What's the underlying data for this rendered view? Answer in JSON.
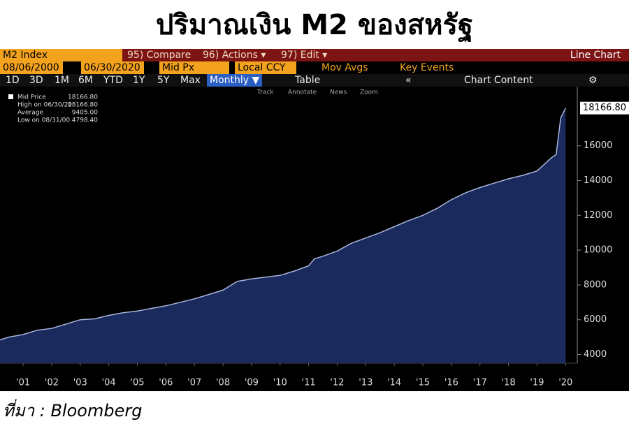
{
  "title": "ปริมาณเงิน M2 ของสหรัฐ",
  "source": "ที่มา : Bloomberg",
  "toolbar": {
    "ticker": "M2 Index",
    "compare": "95) Compare",
    "actions": "96) Actions ▾",
    "edit": "97) Edit ▾",
    "chart_kind": "Line Chart",
    "start_date": "08/06/2000",
    "end_date": "06/30/2020",
    "field": "Mid Px",
    "currency": "Local CCY",
    "mov_avgs": "Mov Avgs",
    "key_events": "Key Events",
    "ranges": [
      "1D",
      "3D",
      "1M",
      "6M",
      "YTD",
      "1Y",
      "5Y",
      "Max"
    ],
    "period": "Monthly ▼",
    "table": "Table",
    "collapse": "«",
    "chart_content": "Chart Content",
    "settings": "⚙",
    "tools": [
      "Track",
      "Annotate",
      "News",
      "Zoom"
    ]
  },
  "chart_data": {
    "type": "area",
    "x": [
      2000.6,
      2001.0,
      2001.5,
      2002.0,
      2002.5,
      2003.0,
      2003.5,
      2004.0,
      2004.5,
      2005.0,
      2005.5,
      2006.0,
      2006.5,
      2007.0,
      2007.5,
      2008.0,
      2008.5,
      2009.0,
      2009.5,
      2010.0,
      2010.5,
      2011.0,
      2011.5,
      2011.7,
      2012.0,
      2012.5,
      2013.0,
      2013.5,
      2014.0,
      2014.5,
      2015.0,
      2015.5,
      2016.0,
      2016.5,
      2017.0,
      2017.5,
      2018.0,
      2018.5,
      2019.0,
      2019.5,
      2020.0,
      2020.17,
      2020.33,
      2020.5
    ],
    "series": [
      {
        "name": "Mid Price",
        "color": "#1a2a5c",
        "line_color": "#a9b6dc",
        "values": [
          4798.4,
          5000,
          5150,
          5400,
          5500,
          5750,
          6000,
          6050,
          6250,
          6400,
          6500,
          6650,
          6800,
          7000,
          7200,
          7450,
          7700,
          8200,
          8350,
          8450,
          8550,
          8800,
          9100,
          9500,
          9650,
          9950,
          10400,
          10700,
          11000,
          11350,
          11700,
          12000,
          12400,
          12900,
          13300,
          13600,
          13850,
          14100,
          14300,
          14550,
          15300,
          15500,
          17600,
          18166.8
        ]
      }
    ],
    "last_value_label": "18166.80",
    "stats": [
      {
        "name": "Mid Price",
        "value_label": "18166.80"
      },
      {
        "name": "High on 06/30/20",
        "value_label": "18166.80"
      },
      {
        "name": "Average",
        "value_label": "9405.00"
      },
      {
        "name": "Low on 08/31/00",
        "value_label": "4798.40"
      }
    ],
    "xlim": [
      2000.69,
      2020.91
    ],
    "xticks": [
      {
        "value": 2001.5,
        "label": "'01"
      },
      {
        "value": 2002.5,
        "label": "'02"
      },
      {
        "value": 2003.5,
        "label": "'03"
      },
      {
        "value": 2004.5,
        "label": "'04"
      },
      {
        "value": 2005.5,
        "label": "'05"
      },
      {
        "value": 2006.5,
        "label": "'06"
      },
      {
        "value": 2007.5,
        "label": "'07"
      },
      {
        "value": 2008.5,
        "label": "'08"
      },
      {
        "value": 2009.5,
        "label": "'09"
      },
      {
        "value": 2010.5,
        "label": "'10"
      },
      {
        "value": 2011.5,
        "label": "'11"
      },
      {
        "value": 2012.5,
        "label": "'12"
      },
      {
        "value": 2013.5,
        "label": "'13"
      },
      {
        "value": 2014.5,
        "label": "'14"
      },
      {
        "value": 2015.5,
        "label": "'15"
      },
      {
        "value": 2016.5,
        "label": "'16"
      },
      {
        "value": 2017.5,
        "label": "'17"
      },
      {
        "value": 2018.5,
        "label": "'18"
      },
      {
        "value": 2019.5,
        "label": "'19"
      },
      {
        "value": 2020.5,
        "label": "'20"
      }
    ],
    "ylim": [
      3500,
      19400
    ],
    "yticks": [
      4000,
      6000,
      8000,
      10000,
      12000,
      14000,
      16000
    ],
    "grid": false
  }
}
